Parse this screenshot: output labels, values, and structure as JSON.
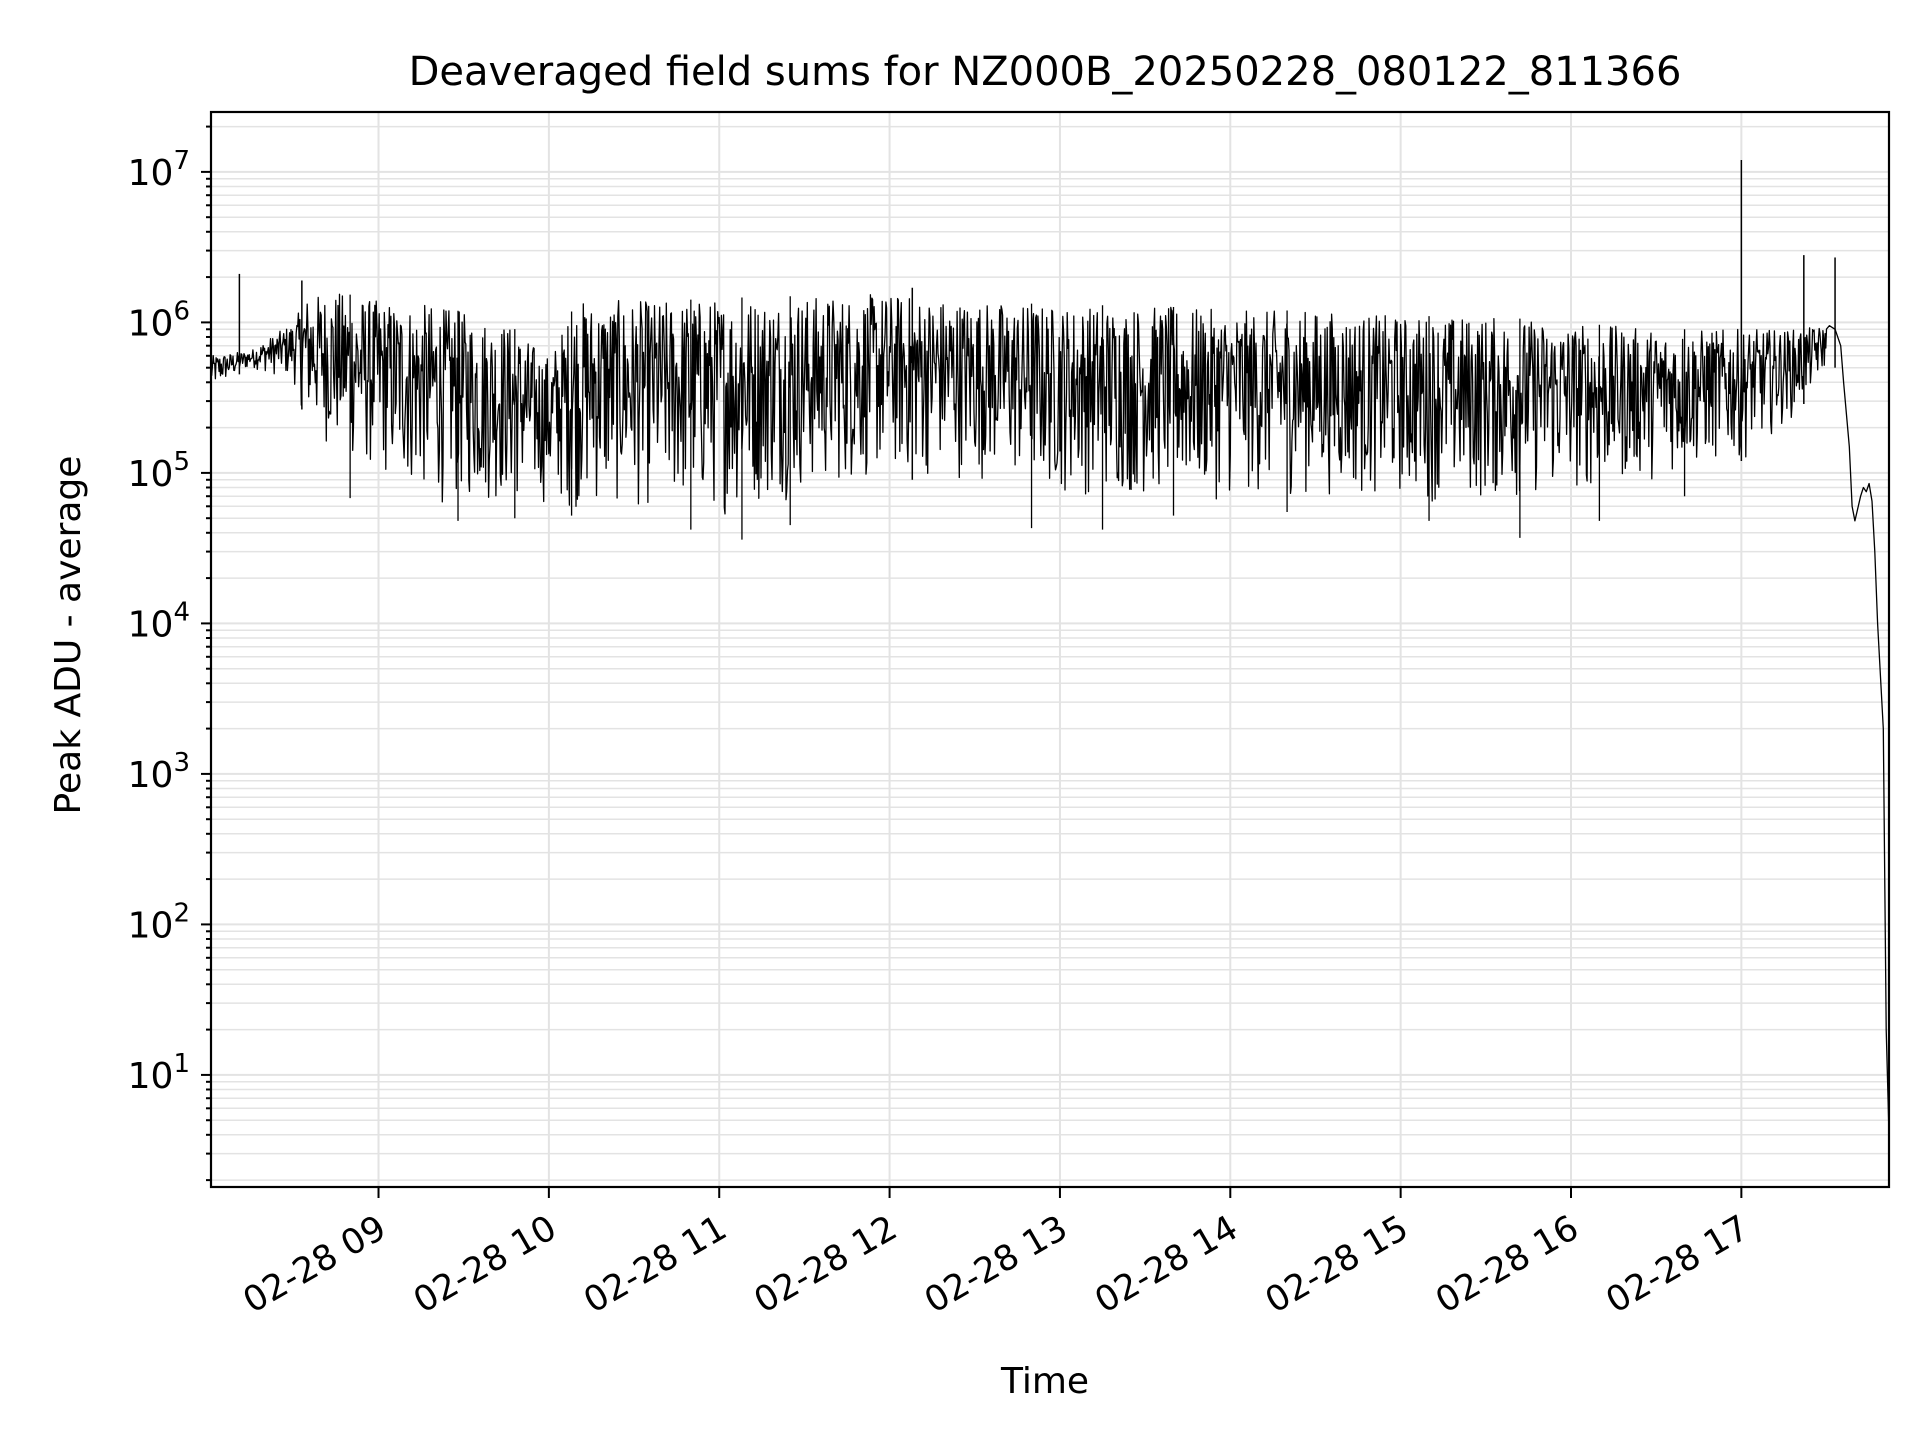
{
  "chart_data": {
    "type": "line",
    "title": "Deaveraged field sums for NZ000B_20250228_080122_811366",
    "xlabel": "Time",
    "ylabel": "Peak ADU - average",
    "yscale": "log",
    "ylim": [
      1.8,
      25000000
    ],
    "xlim": [
      "02-28 08:01",
      "02-28 17:52"
    ],
    "grid": true,
    "line_color": "#000000",
    "grid_color": "#e3e3e3",
    "x_ticks": [
      {
        "value": "02-28 09:00",
        "label": "02-28 09"
      },
      {
        "value": "02-28 10:00",
        "label": "02-28 10"
      },
      {
        "value": "02-28 11:00",
        "label": "02-28 11"
      },
      {
        "value": "02-28 12:00",
        "label": "02-28 12"
      },
      {
        "value": "02-28 13:00",
        "label": "02-28 13"
      },
      {
        "value": "02-28 14:00",
        "label": "02-28 14"
      },
      {
        "value": "02-28 15:00",
        "label": "02-28 15"
      },
      {
        "value": "02-28 16:00",
        "label": "02-28 16"
      },
      {
        "value": "02-28 17:00",
        "label": "02-28 17"
      }
    ],
    "y_ticks": [
      {
        "value": 10,
        "base": "10",
        "exp": "1"
      },
      {
        "value": 100,
        "base": "10",
        "exp": "2"
      },
      {
        "value": 1000,
        "base": "10",
        "exp": "3"
      },
      {
        "value": 10000,
        "base": "10",
        "exp": "4"
      },
      {
        "value": 100000,
        "base": "10",
        "exp": "5"
      },
      {
        "value": 1000000,
        "base": "10",
        "exp": "6"
      },
      {
        "value": 10000000,
        "base": "10",
        "exp": "7"
      }
    ],
    "envelope": [
      {
        "x": "02-28 08:01",
        "hi": 600000,
        "lo": 350000
      },
      {
        "x": "02-28 08:15",
        "hi": 650000,
        "lo": 500000
      },
      {
        "x": "02-28 08:30",
        "hi": 1000000,
        "lo": 400000
      },
      {
        "x": "02-28 08:35",
        "hi": 1500000,
        "lo": 200000
      },
      {
        "x": "02-28 08:45",
        "hi": 1600000,
        "lo": 130000
      },
      {
        "x": "02-28 09:00",
        "hi": 1400000,
        "lo": 90000
      },
      {
        "x": "02-28 09:20",
        "hi": 1300000,
        "lo": 60000
      },
      {
        "x": "02-28 09:45",
        "hi": 1000000,
        "lo": 60000
      },
      {
        "x": "02-28 10:00",
        "hi": 600000,
        "lo": 60000
      },
      {
        "x": "02-28 10:10",
        "hi": 1400000,
        "lo": 55000
      },
      {
        "x": "02-28 10:45",
        "hi": 1400000,
        "lo": 55000
      },
      {
        "x": "02-28 11:00",
        "hi": 1450000,
        "lo": 50000
      },
      {
        "x": "02-28 11:30",
        "hi": 1500000,
        "lo": 70000
      },
      {
        "x": "02-28 12:00",
        "hi": 1550000,
        "lo": 90000
      },
      {
        "x": "02-28 12:30",
        "hi": 1400000,
        "lo": 90000
      },
      {
        "x": "02-28 13:00",
        "hi": 1300000,
        "lo": 70000
      },
      {
        "x": "02-28 13:30",
        "hi": 1300000,
        "lo": 65000
      },
      {
        "x": "02-28 14:00",
        "hi": 1200000,
        "lo": 65000
      },
      {
        "x": "02-28 14:30",
        "hi": 1200000,
        "lo": 70000
      },
      {
        "x": "02-28 15:00",
        "hi": 1100000,
        "lo": 65000
      },
      {
        "x": "02-28 15:30",
        "hi": 1100000,
        "lo": 60000
      },
      {
        "x": "02-28 16:00",
        "hi": 1000000,
        "lo": 70000
      },
      {
        "x": "02-28 16:30",
        "hi": 900000,
        "lo": 90000
      },
      {
        "x": "02-28 17:00",
        "hi": 900000,
        "lo": 120000
      },
      {
        "x": "02-28 17:20",
        "hi": 900000,
        "lo": 250000
      },
      {
        "x": "02-28 17:30",
        "hi": 950000,
        "lo": 500000
      }
    ],
    "dips": [
      {
        "x": "02-28 08:50",
        "y": 68000
      },
      {
        "x": "02-28 09:28",
        "y": 48000
      },
      {
        "x": "02-28 09:48",
        "y": 50000
      },
      {
        "x": "02-28 10:08",
        "y": 52000
      },
      {
        "x": "02-28 10:50",
        "y": 42000
      },
      {
        "x": "02-28 11:08",
        "y": 36000
      },
      {
        "x": "02-28 11:25",
        "y": 45000
      },
      {
        "x": "02-28 12:50",
        "y": 43000
      },
      {
        "x": "02-28 13:15",
        "y": 42000
      },
      {
        "x": "02-28 13:40",
        "y": 52000
      },
      {
        "x": "02-28 14:20",
        "y": 55000
      },
      {
        "x": "02-28 15:10",
        "y": 48000
      },
      {
        "x": "02-28 15:42",
        "y": 37000
      },
      {
        "x": "02-28 16:10",
        "y": 48000
      },
      {
        "x": "02-28 16:40",
        "y": 70000
      }
    ],
    "spikes": [
      {
        "x": "02-28 08:11",
        "y": 2100000
      },
      {
        "x": "02-28 08:33",
        "y": 1900000
      },
      {
        "x": "02-28 12:08",
        "y": 1700000
      },
      {
        "x": "02-28 17:00",
        "y": 12000000
      },
      {
        "x": "02-28 17:22",
        "y": 2800000
      },
      {
        "x": "02-28 17:33",
        "y": 2700000
      }
    ],
    "tail": [
      {
        "x": "02-28 17:31",
        "y": 950000
      },
      {
        "x": "02-28 17:33",
        "y": 900000
      },
      {
        "x": "02-28 17:35",
        "y": 700000
      },
      {
        "x": "02-28 17:36",
        "y": 400000
      },
      {
        "x": "02-28 17:38",
        "y": 150000
      },
      {
        "x": "02-28 17:39",
        "y": 60000
      },
      {
        "x": "02-28 17:40",
        "y": 48000
      },
      {
        "x": "02-28 17:42",
        "y": 70000
      },
      {
        "x": "02-28 17:43",
        "y": 80000
      },
      {
        "x": "02-28 17:44",
        "y": 75000
      },
      {
        "x": "02-28 17:45",
        "y": 85000
      },
      {
        "x": "02-28 17:46",
        "y": 65000
      },
      {
        "x": "02-28 17:47",
        "y": 30000
      },
      {
        "x": "02-28 17:48",
        "y": 10000
      },
      {
        "x": "02-28 17:50",
        "y": 2000
      },
      {
        "x": "02-28 17:51",
        "y": 20
      },
      {
        "x": "02-28 17:52",
        "y": 4
      }
    ]
  }
}
